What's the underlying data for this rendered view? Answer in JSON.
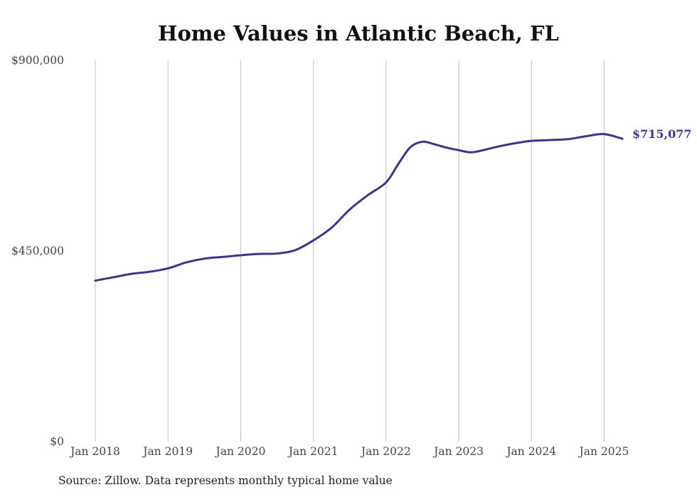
{
  "chart_data": {
    "type": "line",
    "title": "Home Values in Atlantic Beach, FL",
    "source": "Source: Zillow. Data represents monthly typical home value",
    "xlabel": "",
    "ylabel": "",
    "ylim": [
      0,
      900000
    ],
    "y_ticks": [
      {
        "value": 0,
        "label": "$0"
      },
      {
        "value": 450000,
        "label": "$450,000"
      },
      {
        "value": 900000,
        "label": "$900,000"
      }
    ],
    "x_range": [
      "2018-01",
      "2025-04"
    ],
    "x_ticks": [
      {
        "date": "2018-01",
        "label": "Jan 2018"
      },
      {
        "date": "2019-01",
        "label": "Jan 2019"
      },
      {
        "date": "2020-01",
        "label": "Jan 2020"
      },
      {
        "date": "2021-01",
        "label": "Jan 2021"
      },
      {
        "date": "2022-01",
        "label": "Jan 2022"
      },
      {
        "date": "2023-01",
        "label": "Jan 2023"
      },
      {
        "date": "2024-01",
        "label": "Jan 2024"
      },
      {
        "date": "2025-01",
        "label": "Jan 2025"
      }
    ],
    "grid": "vertical",
    "colors": {
      "line": "#3d358b"
    },
    "end_label": "$715,077",
    "series": [
      {
        "values": [
          {
            "x": "2018-01",
            "y": 380000
          },
          {
            "x": "2018-04",
            "y": 388000
          },
          {
            "x": "2018-07",
            "y": 396000
          },
          {
            "x": "2018-10",
            "y": 401000
          },
          {
            "x": "2019-01",
            "y": 409000
          },
          {
            "x": "2019-04",
            "y": 423000
          },
          {
            "x": "2019-07",
            "y": 432000
          },
          {
            "x": "2019-10",
            "y": 436000
          },
          {
            "x": "2020-01",
            "y": 440000
          },
          {
            "x": "2020-04",
            "y": 443000
          },
          {
            "x": "2020-07",
            "y": 444000
          },
          {
            "x": "2020-10",
            "y": 452000
          },
          {
            "x": "2021-01",
            "y": 475000
          },
          {
            "x": "2021-04",
            "y": 505000
          },
          {
            "x": "2021-07",
            "y": 548000
          },
          {
            "x": "2021-10",
            "y": 582000
          },
          {
            "x": "2022-01",
            "y": 612000
          },
          {
            "x": "2022-03",
            "y": 655000
          },
          {
            "x": "2022-05",
            "y": 695000
          },
          {
            "x": "2022-07",
            "y": 708000
          },
          {
            "x": "2022-09",
            "y": 702000
          },
          {
            "x": "2022-11",
            "y": 694000
          },
          {
            "x": "2023-01",
            "y": 688000
          },
          {
            "x": "2023-03",
            "y": 683000
          },
          {
            "x": "2023-05",
            "y": 688000
          },
          {
            "x": "2023-07",
            "y": 695000
          },
          {
            "x": "2023-09",
            "y": 701000
          },
          {
            "x": "2023-11",
            "y": 706000
          },
          {
            "x": "2024-01",
            "y": 710000
          },
          {
            "x": "2024-04",
            "y": 712000
          },
          {
            "x": "2024-07",
            "y": 714000
          },
          {
            "x": "2024-10",
            "y": 721000
          },
          {
            "x": "2025-01",
            "y": 726000
          },
          {
            "x": "2025-04",
            "y": 715077
          }
        ]
      }
    ]
  }
}
